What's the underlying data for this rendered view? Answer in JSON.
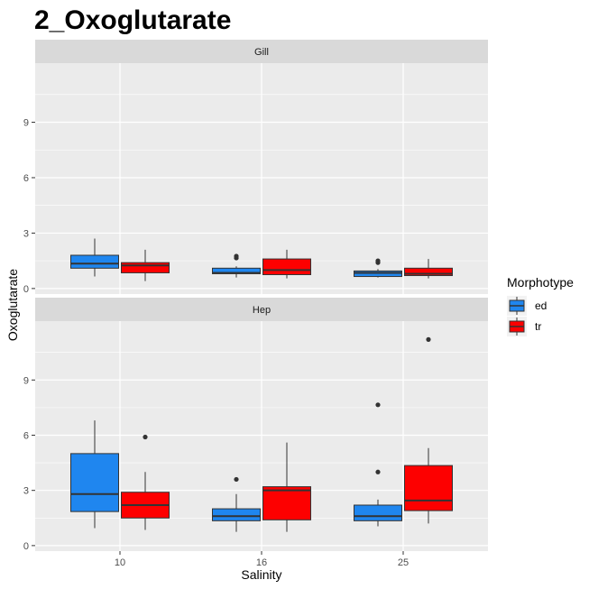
{
  "chart_data": {
    "type": "boxplot",
    "title": "2_Oxoglutarate",
    "xlabel": "Salinity",
    "ylabel": "Oxoglutarate",
    "categories": [
      "10",
      "16",
      "25"
    ],
    "ylim": [
      -0.3,
      12.2
    ],
    "yticks": [
      0,
      3,
      6,
      9
    ],
    "grid": true,
    "legend": {
      "title": "Morphotype",
      "position": "right",
      "entries": [
        {
          "label": "ed",
          "color": "#1f86ef"
        },
        {
          "label": "tr",
          "color": "#fd0000"
        }
      ]
    },
    "facets": [
      {
        "label": "Gill",
        "boxes": [
          {
            "category": "10",
            "group": "ed",
            "low": 0.65,
            "q1": 1.1,
            "median": 1.35,
            "q3": 1.8,
            "high": 2.7,
            "outliers": []
          },
          {
            "category": "10",
            "group": "tr",
            "low": 0.4,
            "q1": 0.85,
            "median": 1.25,
            "q3": 1.4,
            "high": 2.1,
            "outliers": []
          },
          {
            "category": "16",
            "group": "ed",
            "low": 0.6,
            "q1": 0.8,
            "median": 0.85,
            "q3": 1.1,
            "high": 1.2,
            "outliers": [
              1.65,
              1.75
            ]
          },
          {
            "category": "16",
            "group": "tr",
            "low": 0.55,
            "q1": 0.75,
            "median": 1.0,
            "q3": 1.6,
            "high": 2.1,
            "outliers": []
          },
          {
            "category": "25",
            "group": "ed",
            "low": 0.6,
            "q1": 0.65,
            "median": 0.85,
            "q3": 0.95,
            "high": 1.05,
            "outliers": [
              1.4,
              1.5
            ]
          },
          {
            "category": "25",
            "group": "tr",
            "low": 0.55,
            "q1": 0.7,
            "median": 0.8,
            "q3": 1.1,
            "high": 1.6,
            "outliers": []
          }
        ]
      },
      {
        "label": "Hep",
        "boxes": [
          {
            "category": "10",
            "group": "ed",
            "low": 0.95,
            "q1": 1.85,
            "median": 2.8,
            "q3": 5.0,
            "high": 6.8,
            "outliers": []
          },
          {
            "category": "10",
            "group": "tr",
            "low": 0.85,
            "q1": 1.5,
            "median": 2.2,
            "q3": 2.9,
            "high": 4.0,
            "outliers": [
              5.9
            ]
          },
          {
            "category": "16",
            "group": "ed",
            "low": 0.75,
            "q1": 1.35,
            "median": 1.6,
            "q3": 2.0,
            "high": 2.8,
            "outliers": [
              3.6
            ]
          },
          {
            "category": "16",
            "group": "tr",
            "low": 0.75,
            "q1": 1.4,
            "median": 3.0,
            "q3": 3.2,
            "high": 5.6,
            "outliers": []
          },
          {
            "category": "25",
            "group": "ed",
            "low": 1.05,
            "q1": 1.35,
            "median": 1.6,
            "q3": 2.2,
            "high": 2.5,
            "outliers": [
              4.0,
              7.65
            ]
          },
          {
            "category": "25",
            "group": "tr",
            "low": 1.2,
            "q1": 1.9,
            "median": 2.45,
            "q3": 4.35,
            "high": 5.3,
            "outliers": [
              11.2
            ]
          }
        ]
      }
    ]
  }
}
